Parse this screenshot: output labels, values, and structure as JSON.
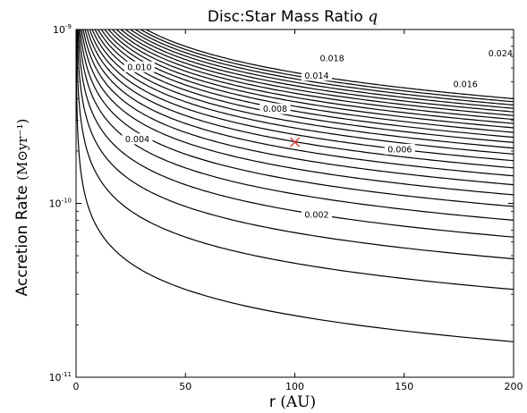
{
  "chart_data": {
    "type": "line",
    "title": "Disc:Star Mass Ratio",
    "title_symbol": "q",
    "xlabel": "r",
    "xlabel_unit": "(AU)",
    "ylabel": "Accretion Rate",
    "ylabel_unit": "(M⊙yr⁻¹)",
    "xlim": [
      0,
      200
    ],
    "ylim": [
      1e-11,
      1e-09
    ],
    "yscale": "log",
    "grid": false,
    "x_ticks": [
      0,
      50,
      100,
      150,
      200
    ],
    "x_tick_labels": [
      "0",
      "50",
      "100",
      "150",
      "200"
    ],
    "y_ticks": [
      1e-11,
      1e-10,
      1e-09
    ],
    "y_tick_labels": [
      {
        "base": "10",
        "exp": "-11"
      },
      {
        "base": "10",
        "exp": "-10"
      },
      {
        "base": "10",
        "exp": "-9"
      }
    ],
    "contour_model": "Mdot ∝ q · r^(-1/2); contour levels q = 0.001 to 0.025 in steps of 0.001",
    "contour_levels": [
      0.001,
      0.002,
      0.003,
      0.004,
      0.005,
      0.006,
      0.007,
      0.008,
      0.009,
      0.01,
      0.011,
      0.012,
      0.013,
      0.014,
      0.015,
      0.016,
      0.017,
      0.018,
      0.019,
      0.02,
      0.021,
      0.022,
      0.023,
      0.024,
      0.025
    ],
    "contour_points_at_r200": [
      {
        "q": 0.001,
        "mdot": 1.6e-11
      },
      {
        "q": 0.002,
        "mdot": 3.2e-11
      },
      {
        "q": 0.004,
        "mdot": 6.4e-11
      },
      {
        "q": 0.006,
        "mdot": 9.6e-11
      },
      {
        "q": 0.008,
        "mdot": 1.28e-10
      },
      {
        "q": 0.01,
        "mdot": 1.6e-10
      },
      {
        "q": 0.014,
        "mdot": 2.24e-10
      },
      {
        "q": 0.016,
        "mdot": 2.56e-10
      },
      {
        "q": 0.018,
        "mdot": 2.88e-10
      },
      {
        "q": 0.024,
        "mdot": 3.84e-10
      }
    ],
    "contour_labels": [
      {
        "text": "0.002",
        "x": 110,
        "y": 8.6e-11
      },
      {
        "text": "0.004",
        "x": 28,
        "y": 2.35e-10
      },
      {
        "text": "0.006",
        "x": 148,
        "y": 2.05e-10
      },
      {
        "text": "0.008",
        "x": 91,
        "y": 3.5e-10
      },
      {
        "text": "0.010",
        "x": 29,
        "y": 6.1e-10
      },
      {
        "text": "0.014",
        "x": 110,
        "y": 5.45e-10
      },
      {
        "text": "0.016",
        "x": 178,
        "y": 4.85e-10
      },
      {
        "text": "0.018",
        "x": 117,
        "y": 6.85e-10
      },
      {
        "text": "0.024",
        "x": 194,
        "y": 7.3e-10
      }
    ],
    "marker": {
      "symbol": "x",
      "x": 100,
      "y": 2.25e-10,
      "color": "#e8302a"
    }
  }
}
